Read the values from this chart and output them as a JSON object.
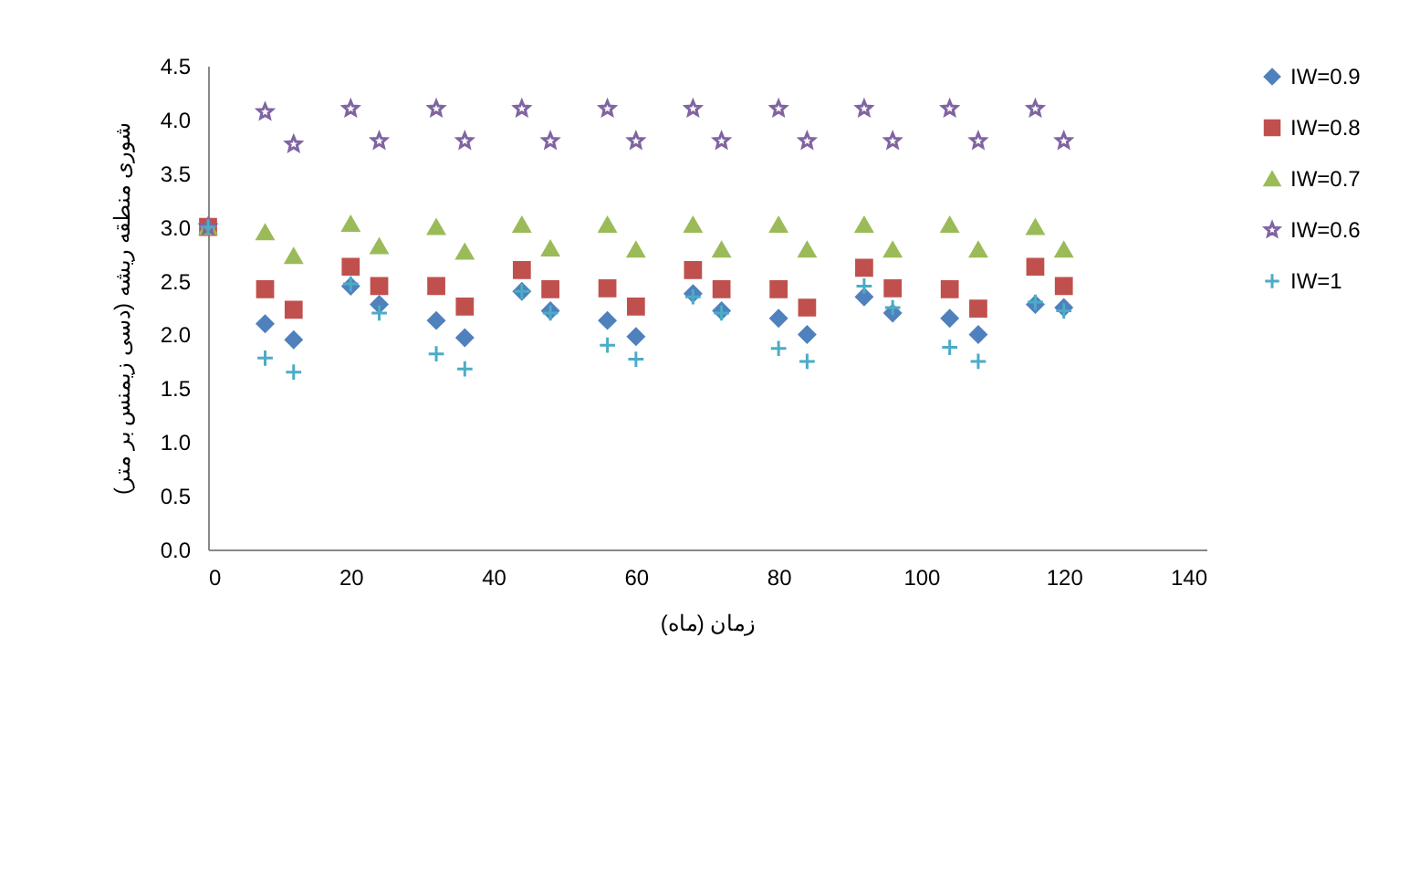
{
  "chart_data": {
    "type": "scatter",
    "xlabel": "زمان (ماه)",
    "ylabel": "شوری منطقه ریشه (دسی زیمنس بر متر)",
    "x": [
      0,
      8,
      12,
      20,
      24,
      32,
      36,
      44,
      48,
      56,
      60,
      68,
      72,
      80,
      84,
      92,
      96,
      104,
      108,
      116,
      120
    ],
    "series": [
      {
        "name": "IW=0.9",
        "color": "#4f81bd",
        "marker": "diamond",
        "values": [
          null,
          2.1,
          1.95,
          2.45,
          2.28,
          2.13,
          1.97,
          2.4,
          2.22,
          2.13,
          1.98,
          2.38,
          2.22,
          2.15,
          2.0,
          2.35,
          2.2,
          2.15,
          2.0,
          2.28,
          2.25
        ]
      },
      {
        "name": "IW=0.8",
        "color": "#c0504d",
        "marker": "square",
        "values": [
          3.0,
          2.42,
          2.23,
          2.63,
          2.45,
          2.45,
          2.26,
          2.6,
          2.42,
          2.43,
          2.26,
          2.6,
          2.42,
          2.42,
          2.25,
          2.62,
          2.43,
          2.42,
          2.24,
          2.63,
          2.45
        ]
      },
      {
        "name": "IW=0.7",
        "color": "#9bbb59",
        "marker": "triangle",
        "values": [
          3.0,
          2.95,
          2.73,
          3.03,
          2.82,
          3.0,
          2.77,
          3.02,
          2.8,
          3.02,
          2.79,
          3.02,
          2.79,
          3.02,
          2.79,
          3.02,
          2.79,
          3.02,
          2.79,
          3.0,
          2.79
        ]
      },
      {
        "name": "IW=0.6",
        "color": "#8064a2",
        "marker": "star",
        "values": [
          3.0,
          4.07,
          3.77,
          4.1,
          3.8,
          4.1,
          3.8,
          4.1,
          3.8,
          4.1,
          3.8,
          4.1,
          3.8,
          4.1,
          3.8,
          4.1,
          3.8,
          4.1,
          3.8,
          4.1,
          3.8
        ]
      },
      {
        "name": "IW=1",
        "color": "#4bacc6",
        "marker": "cross",
        "values": [
          3.0,
          1.78,
          1.65,
          2.47,
          2.2,
          1.82,
          1.68,
          2.4,
          2.2,
          1.9,
          1.77,
          2.35,
          2.2,
          1.87,
          1.75,
          2.45,
          2.25,
          1.88,
          1.75,
          2.3,
          2.22
        ]
      }
    ],
    "xlim": [
      0,
      140
    ],
    "xticks": [
      0,
      20,
      40,
      60,
      80,
      100,
      120,
      140
    ],
    "ylim": [
      0,
      4.5
    ],
    "yticks": [
      {
        "value": 0,
        "label": "0.0"
      },
      {
        "value": 0.5,
        "label": "0.5"
      },
      {
        "value": 1,
        "label": "1.0"
      },
      {
        "value": 1.5,
        "label": "1.5"
      },
      {
        "value": 2,
        "label": "2.0"
      },
      {
        "value": 2.5,
        "label": "2.5"
      },
      {
        "value": 3,
        "label": "3.0"
      },
      {
        "value": 3.5,
        "label": "3.5"
      },
      {
        "value": 4,
        "label": "4.0"
      },
      {
        "value": 4.5,
        "label": "4.5"
      }
    ],
    "grid": false,
    "legend": "right"
  }
}
